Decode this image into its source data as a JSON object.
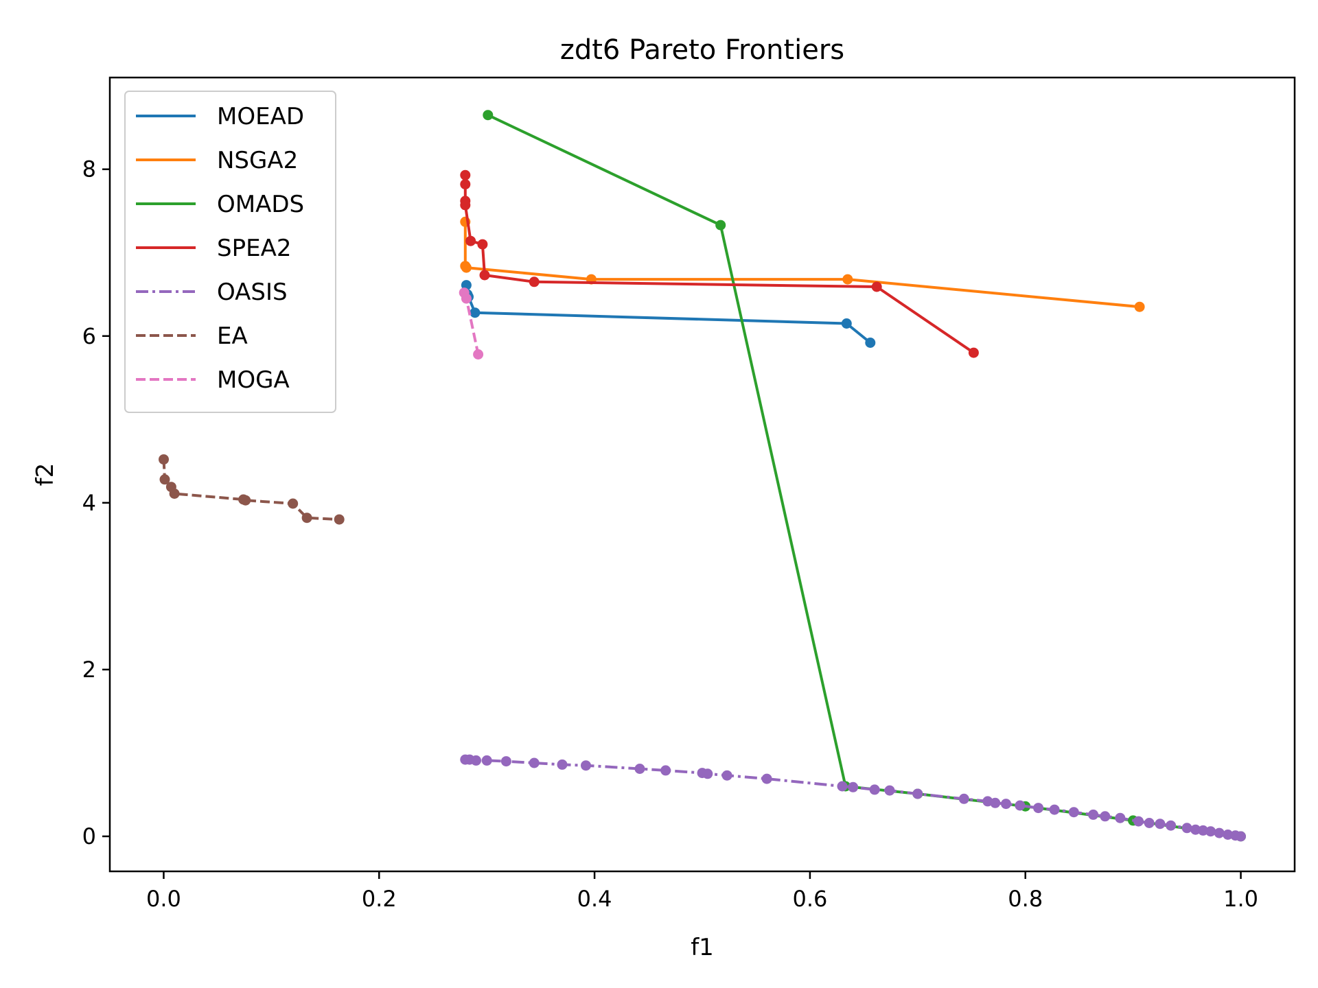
{
  "chart_data": {
    "type": "line",
    "title": "zdt6 Pareto Frontiers",
    "xlabel": "f1",
    "ylabel": "f2",
    "xlim": [
      -0.05,
      1.05
    ],
    "ylim": [
      -0.42,
      9.1
    ],
    "x_ticks": [
      "0.0",
      "0.2",
      "0.4",
      "0.6",
      "0.8",
      "1.0"
    ],
    "y_ticks": [
      "0",
      "2",
      "4",
      "6",
      "8"
    ],
    "legend_position": "upper-left",
    "grid": false,
    "series": [
      {
        "name": "MOEAD",
        "color": "#1f77b4",
        "linestyle": "solid",
        "x": [
          0.281,
          0.282,
          0.283,
          0.289,
          0.634,
          0.656
        ],
        "y": [
          6.61,
          6.5,
          6.47,
          6.28,
          6.15,
          5.92
        ]
      },
      {
        "name": "NSGA2",
        "color": "#ff7f0e",
        "linestyle": "solid",
        "x": [
          0.28,
          0.28,
          0.281,
          0.397,
          0.635,
          0.906
        ],
        "y": [
          7.37,
          6.84,
          6.82,
          6.68,
          6.68,
          6.35
        ]
      },
      {
        "name": "OMADS",
        "color": "#2ca02c",
        "linestyle": "solid",
        "x": [
          0.301,
          0.517,
          0.633,
          0.7,
          0.8,
          0.9,
          1.0
        ],
        "y": [
          8.65,
          7.33,
          0.6,
          0.51,
          0.36,
          0.19,
          0.0
        ]
      },
      {
        "name": "SPEA2",
        "color": "#d62728",
        "linestyle": "solid",
        "x": [
          0.28,
          0.28,
          0.28,
          0.28,
          0.285,
          0.296,
          0.298,
          0.344,
          0.662,
          0.752
        ],
        "y": [
          7.93,
          7.82,
          7.62,
          7.57,
          7.14,
          7.1,
          6.73,
          6.65,
          6.59,
          5.8
        ]
      },
      {
        "name": "OASIS",
        "color": "#9467bd",
        "linestyle": "dashdot",
        "x": [
          0.28,
          0.284,
          0.29,
          0.3,
          0.318,
          0.344,
          0.37,
          0.392,
          0.442,
          0.466,
          0.5,
          0.505,
          0.523,
          0.56,
          0.63,
          0.64,
          0.66,
          0.674,
          0.7,
          0.743,
          0.765,
          0.772,
          0.782,
          0.795,
          0.812,
          0.827,
          0.845,
          0.863,
          0.874,
          0.888,
          0.905,
          0.915,
          0.925,
          0.935,
          0.95,
          0.958,
          0.965,
          0.972,
          0.98,
          0.988,
          0.995,
          1.0
        ],
        "y": [
          0.92,
          0.92,
          0.91,
          0.91,
          0.9,
          0.88,
          0.86,
          0.85,
          0.81,
          0.79,
          0.76,
          0.75,
          0.73,
          0.69,
          0.6,
          0.59,
          0.56,
          0.55,
          0.51,
          0.45,
          0.42,
          0.4,
          0.39,
          0.37,
          0.34,
          0.32,
          0.29,
          0.26,
          0.24,
          0.22,
          0.18,
          0.16,
          0.15,
          0.13,
          0.1,
          0.08,
          0.07,
          0.06,
          0.04,
          0.02,
          0.01,
          0.0
        ]
      },
      {
        "name": "EA",
        "color": "#8c564b",
        "linestyle": "dashed",
        "x": [
          0.0,
          0.001,
          0.007,
          0.01,
          0.074,
          0.076,
          0.12,
          0.133,
          0.163
        ],
        "y": [
          4.52,
          4.28,
          4.19,
          4.11,
          4.04,
          4.03,
          3.99,
          3.82,
          3.8
        ]
      },
      {
        "name": "MOGA",
        "color": "#e377c2",
        "linestyle": "dashed",
        "x": [
          0.279,
          0.281,
          0.292
        ],
        "y": [
          6.52,
          6.45,
          5.78
        ]
      }
    ]
  }
}
